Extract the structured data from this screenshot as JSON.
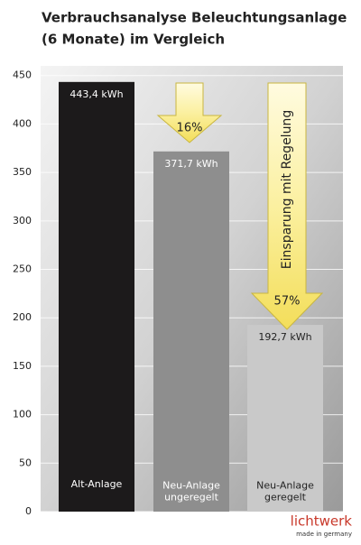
{
  "chart_data": {
    "type": "bar",
    "title": "Verbrauchsanalyse Beleuchtungsanlage",
    "subtitle": "(6 Monate) im Vergleich",
    "categories": [
      "Alt-Anlage",
      "Neu-Anlage\nungeregelt",
      "Neu-Anlage\ngeregelt"
    ],
    "values": [
      443.4,
      371.7,
      192.7
    ],
    "value_labels": [
      "443,4 kWh",
      "371,7 kWh",
      "192,7 kWh"
    ],
    "colors": [
      "#1c1a1b",
      "#8e8e8e",
      "#c9c9c9"
    ],
    "ylim": [
      0,
      460
    ],
    "yticks": [
      0,
      50,
      100,
      150,
      200,
      250,
      300,
      350,
      400,
      450
    ],
    "grid": true,
    "annotations": [
      "16%",
      "Einsparung mit Regelung",
      "57%"
    ],
    "logo": {
      "name": "lichtwerk",
      "tagline": "made in germany"
    }
  }
}
